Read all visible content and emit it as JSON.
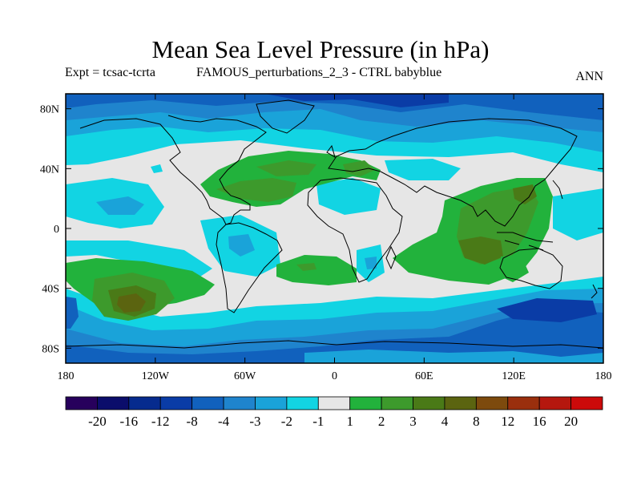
{
  "title": "Mean Sea Level Pressure (in hPa)",
  "subtitle_left": "Expt = tcsac-tcrta",
  "subtitle_center": "FAMOUS_perturbations_2_3 - CTRL babyblue",
  "subtitle_right": "ANN",
  "lat_labels": [
    "80N",
    "40N",
    "0",
    "40S",
    "80S"
  ],
  "lat_values": [
    80,
    40,
    0,
    -40,
    -80
  ],
  "lon_labels": [
    "180",
    "120W",
    "60W",
    "0",
    "60E",
    "120E",
    "180"
  ],
  "lon_values": [
    -180,
    -120,
    -60,
    0,
    60,
    120,
    180
  ],
  "colorbar": {
    "colors": [
      "#27005c",
      "#0b0d6b",
      "#062b8e",
      "#0a3ca6",
      "#1161bd",
      "#1f84cd",
      "#1aa3d9",
      "#12d4e3",
      "#e6e6e6",
      "#22b23c",
      "#3d9a2c",
      "#4a7a17",
      "#5b6410",
      "#7d4a0d",
      "#9a2f0d",
      "#b5170e",
      "#cc0a0a"
    ],
    "labels": [
      "-20",
      "-16",
      "-12",
      "-8",
      "-4",
      "-3",
      "-2",
      "-1",
      "1",
      "2",
      "3",
      "4",
      "8",
      "12",
      "16",
      "20"
    ]
  }
}
